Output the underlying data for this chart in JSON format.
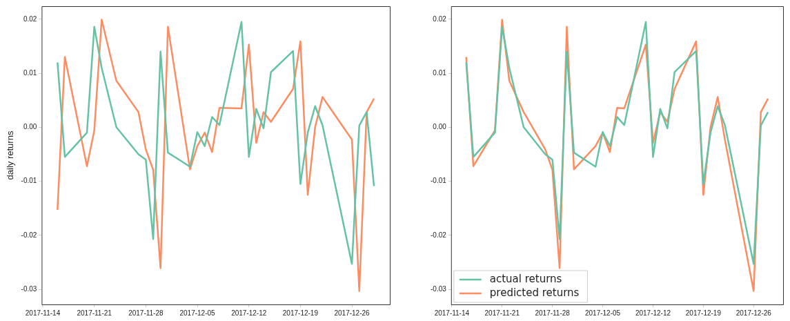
{
  "chart_data": [
    {
      "type": "line",
      "ylabel": "daily returns",
      "x": [
        "2017-11-16",
        "2017-11-17",
        "2017-11-20",
        "2017-11-21",
        "2017-11-22",
        "2017-11-24",
        "2017-11-27",
        "2017-11-28",
        "2017-11-29",
        "2017-11-30",
        "2017-12-01",
        "2017-12-04",
        "2017-12-05",
        "2017-12-06",
        "2017-12-07",
        "2017-12-08",
        "2017-12-11",
        "2017-12-12",
        "2017-12-13",
        "2017-12-14",
        "2017-12-15",
        "2017-12-18",
        "2017-12-19",
        "2017-12-20",
        "2017-12-21",
        "2017-12-22",
        "2017-12-26",
        "2017-12-27",
        "2017-12-28",
        "2017-12-29"
      ],
      "series": [
        {
          "color": "#66c2a5",
          "values": [
            0.012,
            -0.0055,
            -0.001,
            0.0186,
            0.011,
            0.0,
            -0.005,
            -0.006,
            -0.0207,
            0.014,
            -0.0047,
            -0.0073,
            -0.0009,
            -0.0035,
            0.0019,
            0.0004,
            0.0195,
            -0.0055,
            0.0034,
            -0.0002,
            0.0102,
            0.0141,
            -0.0105,
            -0.001,
            0.0039,
            0.0004,
            -0.0253,
            0.0003,
            0.0028,
            -0.0109
          ]
        },
        {
          "color": "#fc8d62",
          "values": [
            -0.0153,
            0.013,
            -0.0072,
            -0.0006,
            0.0199,
            0.0086,
            0.0028,
            -0.0041,
            -0.0079,
            -0.0261,
            0.0186,
            -0.0078,
            -0.0035,
            -0.001,
            -0.0046,
            0.0036,
            0.0035,
            0.0153,
            -0.0029,
            0.0028,
            0.001,
            0.0071,
            0.0159,
            -0.0125,
            0.0,
            0.0056,
            -0.0023,
            -0.0303,
            0.0028,
            0.0053
          ]
        }
      ],
      "xlim": [
        "2017-11-13T20:24",
        "2017-12-31T03:36"
      ],
      "xticks": [
        "2017-11-14",
        "2017-11-21",
        "2017-11-28",
        "2017-12-05",
        "2017-12-12",
        "2017-12-19",
        "2017-12-26"
      ],
      "ylim": [
        -0.0328,
        0.0224
      ],
      "yticks": [
        -0.03,
        -0.02,
        -0.01,
        {
          "value": 0,
          "label": "0.00"
        },
        0.01,
        0.02
      ],
      "grid": false,
      "marker": "none",
      "line_style": "solid"
    },
    {
      "type": "line",
      "x": [
        "2017-11-16",
        "2017-11-17",
        "2017-11-20",
        "2017-11-21",
        "2017-11-22",
        "2017-11-24",
        "2017-11-27",
        "2017-11-28",
        "2017-11-29",
        "2017-11-30",
        "2017-12-01",
        "2017-12-04",
        "2017-12-05",
        "2017-12-06",
        "2017-12-07",
        "2017-12-08",
        "2017-12-11",
        "2017-12-12",
        "2017-12-13",
        "2017-12-14",
        "2017-12-15",
        "2017-12-18",
        "2017-12-19",
        "2017-12-20",
        "2017-12-21",
        "2017-12-22",
        "2017-12-26",
        "2017-12-27",
        "2017-12-28"
      ],
      "series": [
        {
          "name": "actual returns",
          "color": "#66c2a5",
          "values": [
            0.012,
            -0.0055,
            -0.001,
            0.0186,
            0.011,
            0.0,
            -0.005,
            -0.006,
            -0.0207,
            0.014,
            -0.0047,
            -0.0073,
            -0.0009,
            -0.0035,
            0.0019,
            0.0004,
            0.0195,
            -0.0055,
            0.0034,
            -0.0002,
            0.0102,
            0.0141,
            -0.0105,
            -0.001,
            0.0039,
            0.0004,
            -0.0253,
            0.0003,
            0.0028
          ]
        },
        {
          "name": "predicted returns",
          "color": "#fc8d62",
          "values": [
            0.013,
            -0.0072,
            -0.0006,
            0.0199,
            0.0086,
            0.0028,
            -0.0041,
            -0.0079,
            -0.0261,
            0.0186,
            -0.0078,
            -0.0035,
            -0.001,
            -0.0046,
            0.0036,
            0.0035,
            0.0153,
            -0.0029,
            0.0028,
            0.001,
            0.0071,
            0.0159,
            -0.0125,
            0.0,
            0.0056,
            -0.0023,
            -0.0303,
            0.0028,
            0.0053
          ]
        }
      ],
      "xlim": [
        "2017-11-13T21:36",
        "2017-12-30T02:24"
      ],
      "xticks": [
        "2017-11-14",
        "2017-11-21",
        "2017-11-28",
        "2017-12-05",
        "2017-12-12",
        "2017-12-19",
        "2017-12-26"
      ],
      "ylim": [
        -0.0328,
        0.0224
      ],
      "yticks": [
        -0.03,
        -0.02,
        -0.01,
        {
          "value": 0,
          "label": "0.00"
        },
        0.01,
        0.02
      ],
      "grid": false,
      "legend": "bottom left",
      "marker": "none",
      "line_style": "solid"
    }
  ]
}
